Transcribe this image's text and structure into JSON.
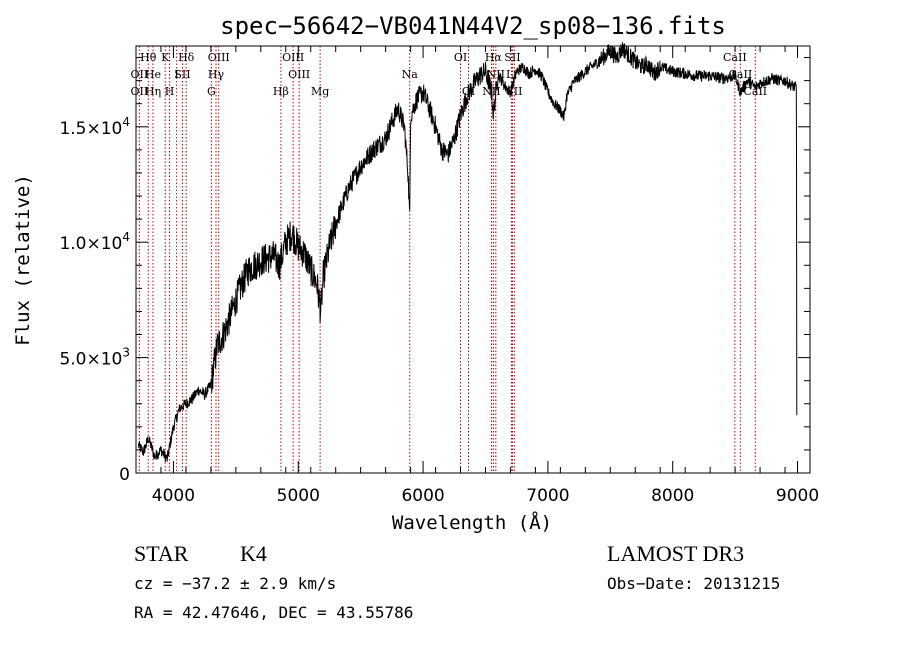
{
  "chart_data": {
    "type": "line",
    "title": "spec−56642−VB041N44V2_sp08−136.fits",
    "xlabel": "Wavelength (Å)",
    "ylabel": "Flux (relative)",
    "xlim": [
      3700,
      9100
    ],
    "ylim": [
      0,
      18500
    ],
    "x_ticks": [
      {
        "value": 4000,
        "label": "4000"
      },
      {
        "value": 5000,
        "label": "5000"
      },
      {
        "value": 6000,
        "label": "6000"
      },
      {
        "value": 7000,
        "label": "7000"
      },
      {
        "value": 8000,
        "label": "8000"
      },
      {
        "value": 9000,
        "label": "9000"
      }
    ],
    "y_ticks": [
      {
        "value": 0,
        "mant": "0",
        "exp": ""
      },
      {
        "value": 5000,
        "mant": "5.0×10",
        "exp": "3"
      },
      {
        "value": 10000,
        "mant": "1.0×10",
        "exp": "4"
      },
      {
        "value": 15000,
        "mant": "1.5×10",
        "exp": "4"
      }
    ],
    "series": [
      {
        "name": "spectrum",
        "x": [
          3720,
          3760,
          3800,
          3850,
          3900,
          3950,
          4000,
          4050,
          4100,
          4150,
          4200,
          4250,
          4300,
          4350,
          4400,
          4450,
          4500,
          4550,
          4600,
          4700,
          4800,
          4850,
          4900,
          4950,
          5000,
          5050,
          5100,
          5150,
          5180,
          5200,
          5250,
          5300,
          5400,
          5500,
          5600,
          5700,
          5750,
          5800,
          5850,
          5880,
          5893,
          5900,
          5950,
          6000,
          6050,
          6100,
          6150,
          6200,
          6250,
          6300,
          6350,
          6400,
          6450,
          6500,
          6550,
          6563,
          6600,
          6650,
          6700,
          6750,
          6800,
          6850,
          6900,
          6950,
          7000,
          7050,
          7100,
          7130,
          7150,
          7200,
          7300,
          7400,
          7500,
          7550,
          7600,
          7650,
          7700,
          7750,
          7800,
          7850,
          7900,
          8000,
          8100,
          8200,
          8300,
          8400,
          8500,
          8542,
          8600,
          8662,
          8700,
          8800,
          8850,
          8900,
          8950,
          8990
        ],
        "y": [
          1200,
          900,
          1500,
          700,
          1000,
          600,
          2000,
          2800,
          3000,
          3200,
          3600,
          3400,
          3800,
          5500,
          6000,
          6700,
          7500,
          8200,
          8800,
          9200,
          9400,
          9000,
          10000,
          10400,
          9800,
          9500,
          8800,
          8200,
          7000,
          8500,
          9800,
          10800,
          12300,
          13300,
          14000,
          14500,
          15200,
          15800,
          15000,
          13000,
          11000,
          15500,
          16200,
          16500,
          15800,
          15000,
          14000,
          13800,
          14500,
          15500,
          16300,
          16800,
          17200,
          17400,
          16500,
          15500,
          17300,
          16800,
          16500,
          17400,
          17600,
          17300,
          17500,
          17200,
          16500,
          16000,
          15700,
          15400,
          16300,
          16900,
          17400,
          17800,
          18300,
          18000,
          18400,
          18100,
          17800,
          17600,
          17700,
          17300,
          17600,
          17400,
          17300,
          17200,
          17200,
          17100,
          17200,
          16500,
          17000,
          16700,
          16900,
          17100,
          17000,
          17000,
          16800,
          16700
        ]
      }
    ],
    "lines": [
      {
        "name": "O II",
        "wl": 3727
      },
      {
        "name": "H theta",
        "wl": 3798
      },
      {
        "name": "H eta",
        "wl": 3836
      },
      {
        "name": "Ca K",
        "wl": 3934
      },
      {
        "name": "Ca H",
        "wl": 3969
      },
      {
        "name": "He I",
        "wl": 4026
      },
      {
        "name": "S II",
        "wl": 4072
      },
      {
        "name": "H delta",
        "wl": 4102
      },
      {
        "name": "G",
        "wl": 4304
      },
      {
        "name": "H gamma",
        "wl": 4341
      },
      {
        "name": "O III",
        "wl": 4363
      },
      {
        "name": "H beta",
        "wl": 4861
      },
      {
        "name": "O III a",
        "wl": 4959
      },
      {
        "name": "O III b",
        "wl": 5007
      },
      {
        "name": "Mg",
        "wl": 5175
      },
      {
        "name": "Na",
        "wl": 5893
      },
      {
        "name": "O I",
        "wl": 6300
      },
      {
        "name": "O I b",
        "wl": 6364
      },
      {
        "name": "N II",
        "wl": 6548
      },
      {
        "name": "H alpha",
        "wl": 6563
      },
      {
        "name": "N II b",
        "wl": 6583
      },
      {
        "name": "Li",
        "wl": 6708
      },
      {
        "name": "S II a",
        "wl": 6716
      },
      {
        "name": "S II b",
        "wl": 6731
      },
      {
        "name": "Ca II a",
        "wl": 8498
      },
      {
        "name": "Ca II b",
        "wl": 8542
      },
      {
        "name": "Ca II c",
        "wl": 8662
      }
    ],
    "line_labels": [
      {
        "text": "Hθ",
        "wl": 3798,
        "row": 1
      },
      {
        "text": "K",
        "wl": 3934,
        "row": 1
      },
      {
        "text": "Hδ",
        "wl": 4102,
        "row": 1
      },
      {
        "text": "OIII",
        "wl": 4363,
        "row": 1
      },
      {
        "text": "OIII",
        "wl": 4959,
        "row": 1
      },
      {
        "text": "OI",
        "wl": 6300,
        "row": 1
      },
      {
        "text": "Hα",
        "wl": 6563,
        "row": 1
      },
      {
        "text": "SII",
        "wl": 6716,
        "row": 1
      },
      {
        "text": "CaII",
        "wl": 8498,
        "row": 1
      },
      {
        "text": "OII",
        "wl": 3727,
        "row": 2
      },
      {
        "text": "He",
        "wl": 3836,
        "row": 2
      },
      {
        "text": "I",
        "wl": 4026,
        "row": 2
      },
      {
        "text": "SII",
        "wl": 4072,
        "row": 2
      },
      {
        "text": "Hγ",
        "wl": 4341,
        "row": 2
      },
      {
        "text": "OIII",
        "wl": 5007,
        "row": 2
      },
      {
        "text": "Na",
        "wl": 5893,
        "row": 2
      },
      {
        "text": "NII",
        "wl": 6583,
        "row": 2
      },
      {
        "text": "Li",
        "wl": 6708,
        "row": 2
      },
      {
        "text": "CaII",
        "wl": 8542,
        "row": 2
      },
      {
        "text": "OII",
        "wl": 3727,
        "row": 3
      },
      {
        "text": "Hη",
        "wl": 3836,
        "row": 3
      },
      {
        "text": "H",
        "wl": 3969,
        "row": 3
      },
      {
        "text": "G",
        "wl": 4304,
        "row": 3
      },
      {
        "text": "Hβ",
        "wl": 4861,
        "row": 3
      },
      {
        "text": "Mg",
        "wl": 5175,
        "row": 3
      },
      {
        "text": "OI",
        "wl": 6364,
        "row": 3
      },
      {
        "text": "NII",
        "wl": 6548,
        "row": 3
      },
      {
        "text": "SII",
        "wl": 6731,
        "row": 3
      },
      {
        "text": "CaII",
        "wl": 8662,
        "row": 3
      }
    ],
    "colors": {
      "spectrum": "#000000",
      "lines": "#c00000",
      "axes": "#000000"
    }
  },
  "info": {
    "object_class": "STAR",
    "subclass": "K4",
    "survey": "LAMOST DR3",
    "redshift": "cz = −37.2 ± 2.9 km/s",
    "obs_date": "Obs−Date: 20131215",
    "coords": "RA =  42.47646, DEC =  43.55786"
  }
}
